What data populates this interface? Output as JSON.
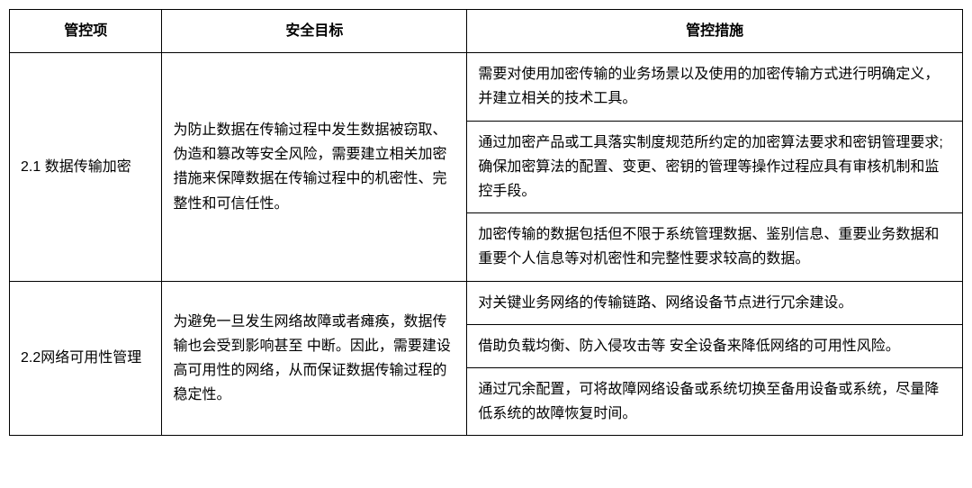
{
  "table": {
    "headers": [
      "管控项",
      "安全目标",
      "管控措施"
    ],
    "column_widths": [
      "16%",
      "32%",
      "52%"
    ],
    "border_color": "#000000",
    "text_color": "#000000",
    "background_color": "#ffffff",
    "font_size": 16,
    "header_font_weight": "bold",
    "rows": [
      {
        "control_item": "2.1 数据传输加密",
        "security_goal": "为防止数据在传输过程中发生数据被窃取、伪造和篡改等安全风险，需要建立相关加密措施来保障数据在传输过程中的机密性、完整性和可信任性。",
        "measures": [
          "需要对使用加密传输的业务场景以及使用的加密传输方式进行明确定义，并建立相关的技术工具。",
          "通过加密产品或工具落实制度规范所约定的加密算法要求和密钥管理要求;确保加密算法的配置、变更、密钥的管理等操作过程应具有审核机制和监控手段。",
          "加密传输的数据包括但不限于系统管理数据、鉴别信息、重要业务数据和重要个人信息等对机密性和完整性要求较高的数据。"
        ]
      },
      {
        "control_item": "2.2网络可用性管理",
        "security_goal": "为避免一旦发生网络故障或者瘫痪，数据传输也会受到影响甚至  中断。因此，需要建设高可用性的网络，从而保证数据传输过程的稳定性。",
        "measures": [
          "对关键业务网络的传输链路、网络设备节点进行冗余建设。",
          "借助负载均衡、防入侵攻击等  安全设备来降低网络的可用性风险。",
          "通过冗余配置，可将故障网络设备或系统切换至备用设备或系统，尽量降低系统的故障恢复时间。"
        ]
      }
    ]
  }
}
